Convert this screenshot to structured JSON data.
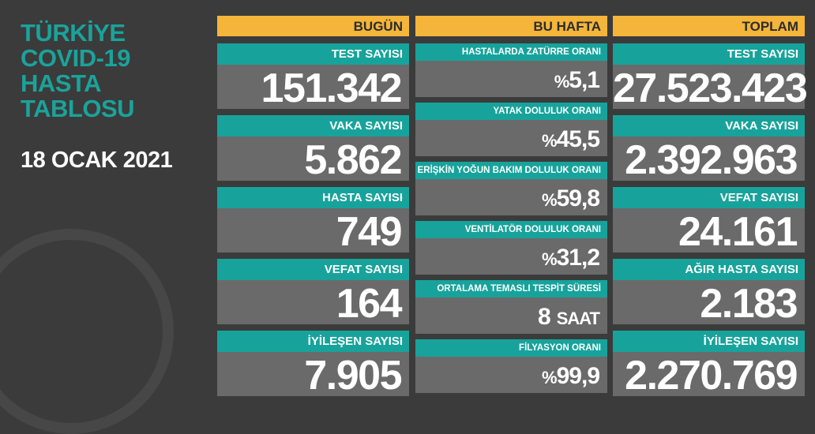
{
  "header": {
    "title_lines": [
      "TÜRKİYE",
      "COVID-19",
      "HASTA",
      "TABLOSU"
    ],
    "date": "18 OCAK 2021"
  },
  "columns": [
    {
      "title": "BUGÜN",
      "cards": [
        {
          "label": "TEST SAYISI",
          "value": "151.342"
        },
        {
          "label": "VAKA SAYISI",
          "value": "5.862"
        },
        {
          "label": "HASTA SAYISI",
          "value": "749"
        },
        {
          "label": "VEFAT SAYISI",
          "value": "164"
        },
        {
          "label": "İYİLEŞEN SAYISI",
          "value": "7.905"
        }
      ]
    },
    {
      "title": "BU HAFTA",
      "cards": [
        {
          "label": "HASTALARDA ZATÜRRE ORANI",
          "prefix": "%",
          "value": "5,1"
        },
        {
          "label": "YATAK DOLULUK ORANI",
          "prefix": "%",
          "value": "45,5"
        },
        {
          "label": "ERİŞKİN YOĞUN BAKIM DOLULUK ORANI",
          "prefix": "%",
          "value": "59,8"
        },
        {
          "label": "VENTİLATÖR DOLULUK ORANI",
          "prefix": "%",
          "value": "31,2"
        },
        {
          "label": "ORTALAMA TEMASLI TESPİT SÜRESİ",
          "value": "8",
          "suffix": "SAAT"
        },
        {
          "label": "FİLYASYON ORANI",
          "prefix": "%",
          "value": "99,9"
        }
      ]
    },
    {
      "title": "TOPLAM",
      "cards": [
        {
          "label": "TEST SAYISI",
          "value": "27.523.423"
        },
        {
          "label": "VAKA SAYISI",
          "value": "2.392.963"
        },
        {
          "label": "VEFAT SAYISI",
          "value": "24.161"
        },
        {
          "label": "AĞIR HASTA SAYISI",
          "value": "2.183"
        },
        {
          "label": "İYİLEŞEN SAYISI",
          "value": "2.270.769"
        }
      ]
    }
  ]
}
